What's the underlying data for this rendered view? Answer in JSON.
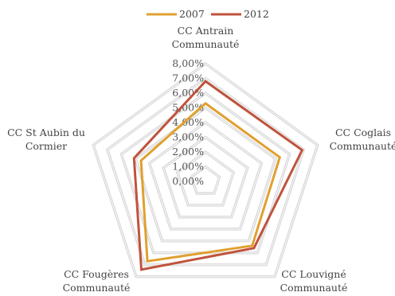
{
  "chart_data": {
    "type": "radar",
    "title": "",
    "axes": [
      [
        "CC Antrain",
        "Communauté"
      ],
      [
        "CC Coglais",
        "Communauté"
      ],
      [
        "CC Louvigné",
        "Communauté"
      ],
      [
        "CC Fougères",
        "Communauté"
      ],
      [
        "CC St Aubin du",
        "Cormier"
      ]
    ],
    "ticks": [
      "0,00%",
      "1,00%",
      "2,00%",
      "3,00%",
      "4,00%",
      "5,00%",
      "6,00%",
      "7,00%",
      "8,00%"
    ],
    "rmax": 8,
    "series": [
      {
        "name": "2007",
        "color": "#e0a030",
        "values": [
          5.3,
          5.3,
          5.4,
          6.7,
          4.6
        ]
      },
      {
        "name": "2012",
        "color": "#c0533c",
        "values": [
          6.8,
          6.9,
          5.6,
          7.4,
          5.1
        ]
      }
    ],
    "grid": true,
    "legend": "top"
  }
}
